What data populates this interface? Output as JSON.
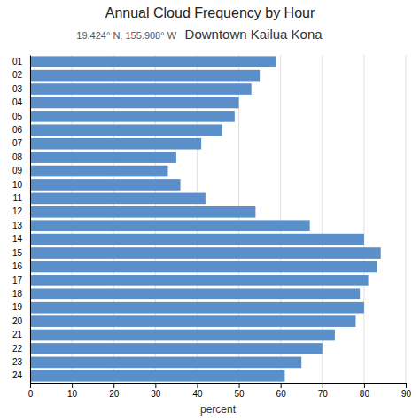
{
  "chart_data": {
    "type": "bar",
    "orientation": "horizontal",
    "title": "Annual Cloud Frequency by Hour",
    "subtitle": "19.424° N, 155.908° W",
    "annotations": [
      "Downtown Kailua Kona"
    ],
    "categories": [
      "01",
      "02",
      "03",
      "04",
      "05",
      "06",
      "07",
      "08",
      "09",
      "10",
      "11",
      "12",
      "13",
      "14",
      "15",
      "16",
      "17",
      "18",
      "19",
      "20",
      "21",
      "22",
      "23",
      "24"
    ],
    "values": [
      59,
      55,
      53,
      50,
      49,
      46,
      41,
      35,
      33,
      36,
      42,
      54,
      67,
      80,
      84,
      83,
      81,
      79,
      80,
      78,
      73,
      70,
      65,
      61
    ],
    "color": "#5B8FC9",
    "xlabel": "percent",
    "xlim": [
      0,
      90
    ],
    "xticks": [
      0,
      10,
      20,
      30,
      40,
      50,
      60,
      70,
      80,
      90
    ],
    "grid": true
  }
}
